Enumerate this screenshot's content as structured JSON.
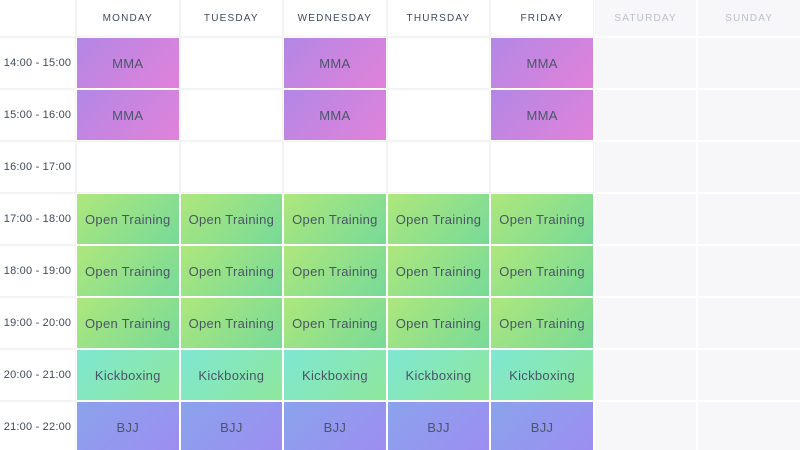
{
  "schedule": {
    "days": [
      {
        "label": "MONDAY",
        "weekend": false
      },
      {
        "label": "TUESDAY",
        "weekend": false
      },
      {
        "label": "WEDNESDAY",
        "weekend": false
      },
      {
        "label": "THURSDAY",
        "weekend": false
      },
      {
        "label": "FRIDAY",
        "weekend": false
      },
      {
        "label": "SATURDAY",
        "weekend": true
      },
      {
        "label": "SUNDAY",
        "weekend": true
      }
    ],
    "event_types": {
      "mma": {
        "label": "MMA",
        "gradient": [
          "#b287e5",
          "#e282da"
        ]
      },
      "open_training": {
        "label": "Open Training",
        "gradient": [
          "#aee77c",
          "#77da98"
        ]
      },
      "kickboxing": {
        "label": "Kickboxing",
        "gradient": [
          "#7fe7d2",
          "#8ee79c"
        ]
      },
      "bjj": {
        "label": "BJJ",
        "gradient": [
          "#8aa3ec",
          "#9d8df1"
        ]
      }
    },
    "rows": [
      {
        "time": "14:00 - 15:00",
        "cells": [
          "mma",
          null,
          "mma",
          null,
          "mma",
          null,
          null
        ]
      },
      {
        "time": "15:00 - 16:00",
        "cells": [
          "mma",
          null,
          "mma",
          null,
          "mma",
          null,
          null
        ]
      },
      {
        "time": "16:00 - 17:00",
        "cells": [
          null,
          null,
          null,
          null,
          null,
          null,
          null
        ]
      },
      {
        "time": "17:00 - 18:00",
        "cells": [
          "open_training",
          "open_training",
          "open_training",
          "open_training",
          "open_training",
          null,
          null
        ]
      },
      {
        "time": "18:00 - 19:00",
        "cells": [
          "open_training",
          "open_training",
          "open_training",
          "open_training",
          "open_training",
          null,
          null
        ]
      },
      {
        "time": "19:00 - 20:00",
        "cells": [
          "open_training",
          "open_training",
          "open_training",
          "open_training",
          "open_training",
          null,
          null
        ]
      },
      {
        "time": "20:00 - 21:00",
        "cells": [
          "kickboxing",
          "kickboxing",
          "kickboxing",
          "kickboxing",
          "kickboxing",
          null,
          null
        ]
      },
      {
        "time": "21:00 - 22:00",
        "cells": [
          "bjj",
          "bjj",
          "bjj",
          "bjj",
          "bjj",
          null,
          null
        ]
      }
    ]
  },
  "colors": {
    "background": "#ffffff",
    "grid_line": "#f3f3f6",
    "weekend_background": "#f7f7f9",
    "weekday_header_text": "#3e4b5c",
    "weekend_header_text": "#b9bfc8",
    "time_text": "#3e4b5c",
    "event_text": "#4b5568"
  }
}
